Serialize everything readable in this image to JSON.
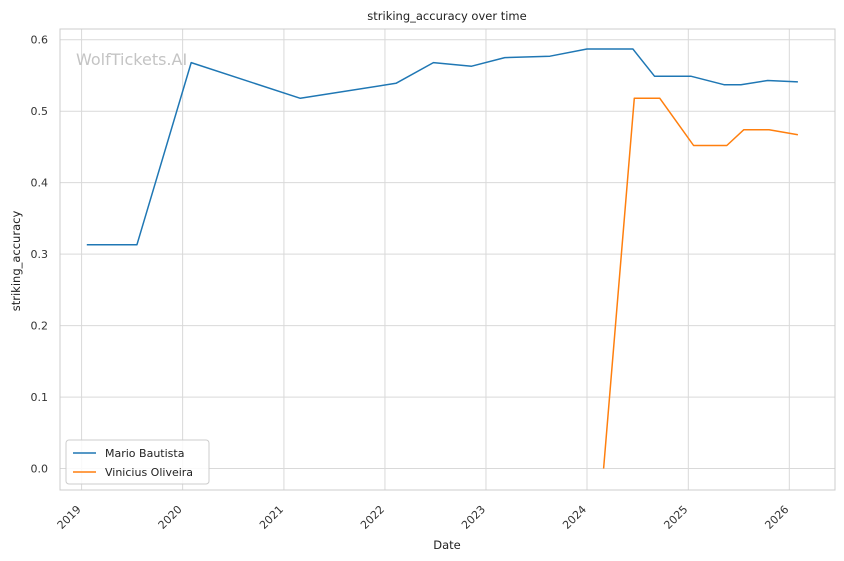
{
  "watermark": "WolfTickets.AI",
  "colors": {
    "Mario Bautista": "#1f77b4",
    "Vinicius Oliveira": "#ff7f0e",
    "grid": "#d9d9d9",
    "frame": "#cccccc"
  },
  "chart_data": {
    "type": "line",
    "title": "striking_accuracy over time",
    "xlabel": "Date",
    "ylabel": "striking_accuracy",
    "x_axis_type": "date",
    "xlim": [
      "2018-10-15",
      "2026-06-15"
    ],
    "ylim": [
      -0.03,
      0.615
    ],
    "xticks": [
      "2019",
      "2020",
      "2021",
      "2022",
      "2023",
      "2024",
      "2025",
      "2026"
    ],
    "yticks": [
      "0.0",
      "0.1",
      "0.2",
      "0.3",
      "0.4",
      "0.5",
      "0.6"
    ],
    "grid": true,
    "legend_position": "lower-left",
    "series": [
      {
        "name": "Mario Bautista",
        "points": [
          [
            "2019-01-20",
            0.313
          ],
          [
            "2019-07-20",
            0.313
          ],
          [
            "2020-02-01",
            0.568
          ],
          [
            "2021-03-01",
            0.518
          ],
          [
            "2022-02-10",
            0.539
          ],
          [
            "2022-06-25",
            0.568
          ],
          [
            "2022-11-10",
            0.563
          ],
          [
            "2023-03-10",
            0.575
          ],
          [
            "2023-08-20",
            0.577
          ],
          [
            "2024-01-01",
            0.587
          ],
          [
            "2024-06-15",
            0.587
          ],
          [
            "2024-09-01",
            0.549
          ],
          [
            "2025-01-10",
            0.549
          ],
          [
            "2025-05-10",
            0.537
          ],
          [
            "2025-07-10",
            0.537
          ],
          [
            "2025-10-15",
            0.543
          ],
          [
            "2026-02-01",
            0.541
          ]
        ]
      },
      {
        "name": "Vinicius Oliveira",
        "points": [
          [
            "2024-03-01",
            0.0
          ],
          [
            "2024-06-20",
            0.518
          ],
          [
            "2024-09-20",
            0.518
          ],
          [
            "2025-01-20",
            0.452
          ],
          [
            "2025-05-20",
            0.452
          ],
          [
            "2025-07-20",
            0.474
          ],
          [
            "2025-10-20",
            0.474
          ],
          [
            "2026-02-01",
            0.467
          ]
        ]
      }
    ]
  }
}
